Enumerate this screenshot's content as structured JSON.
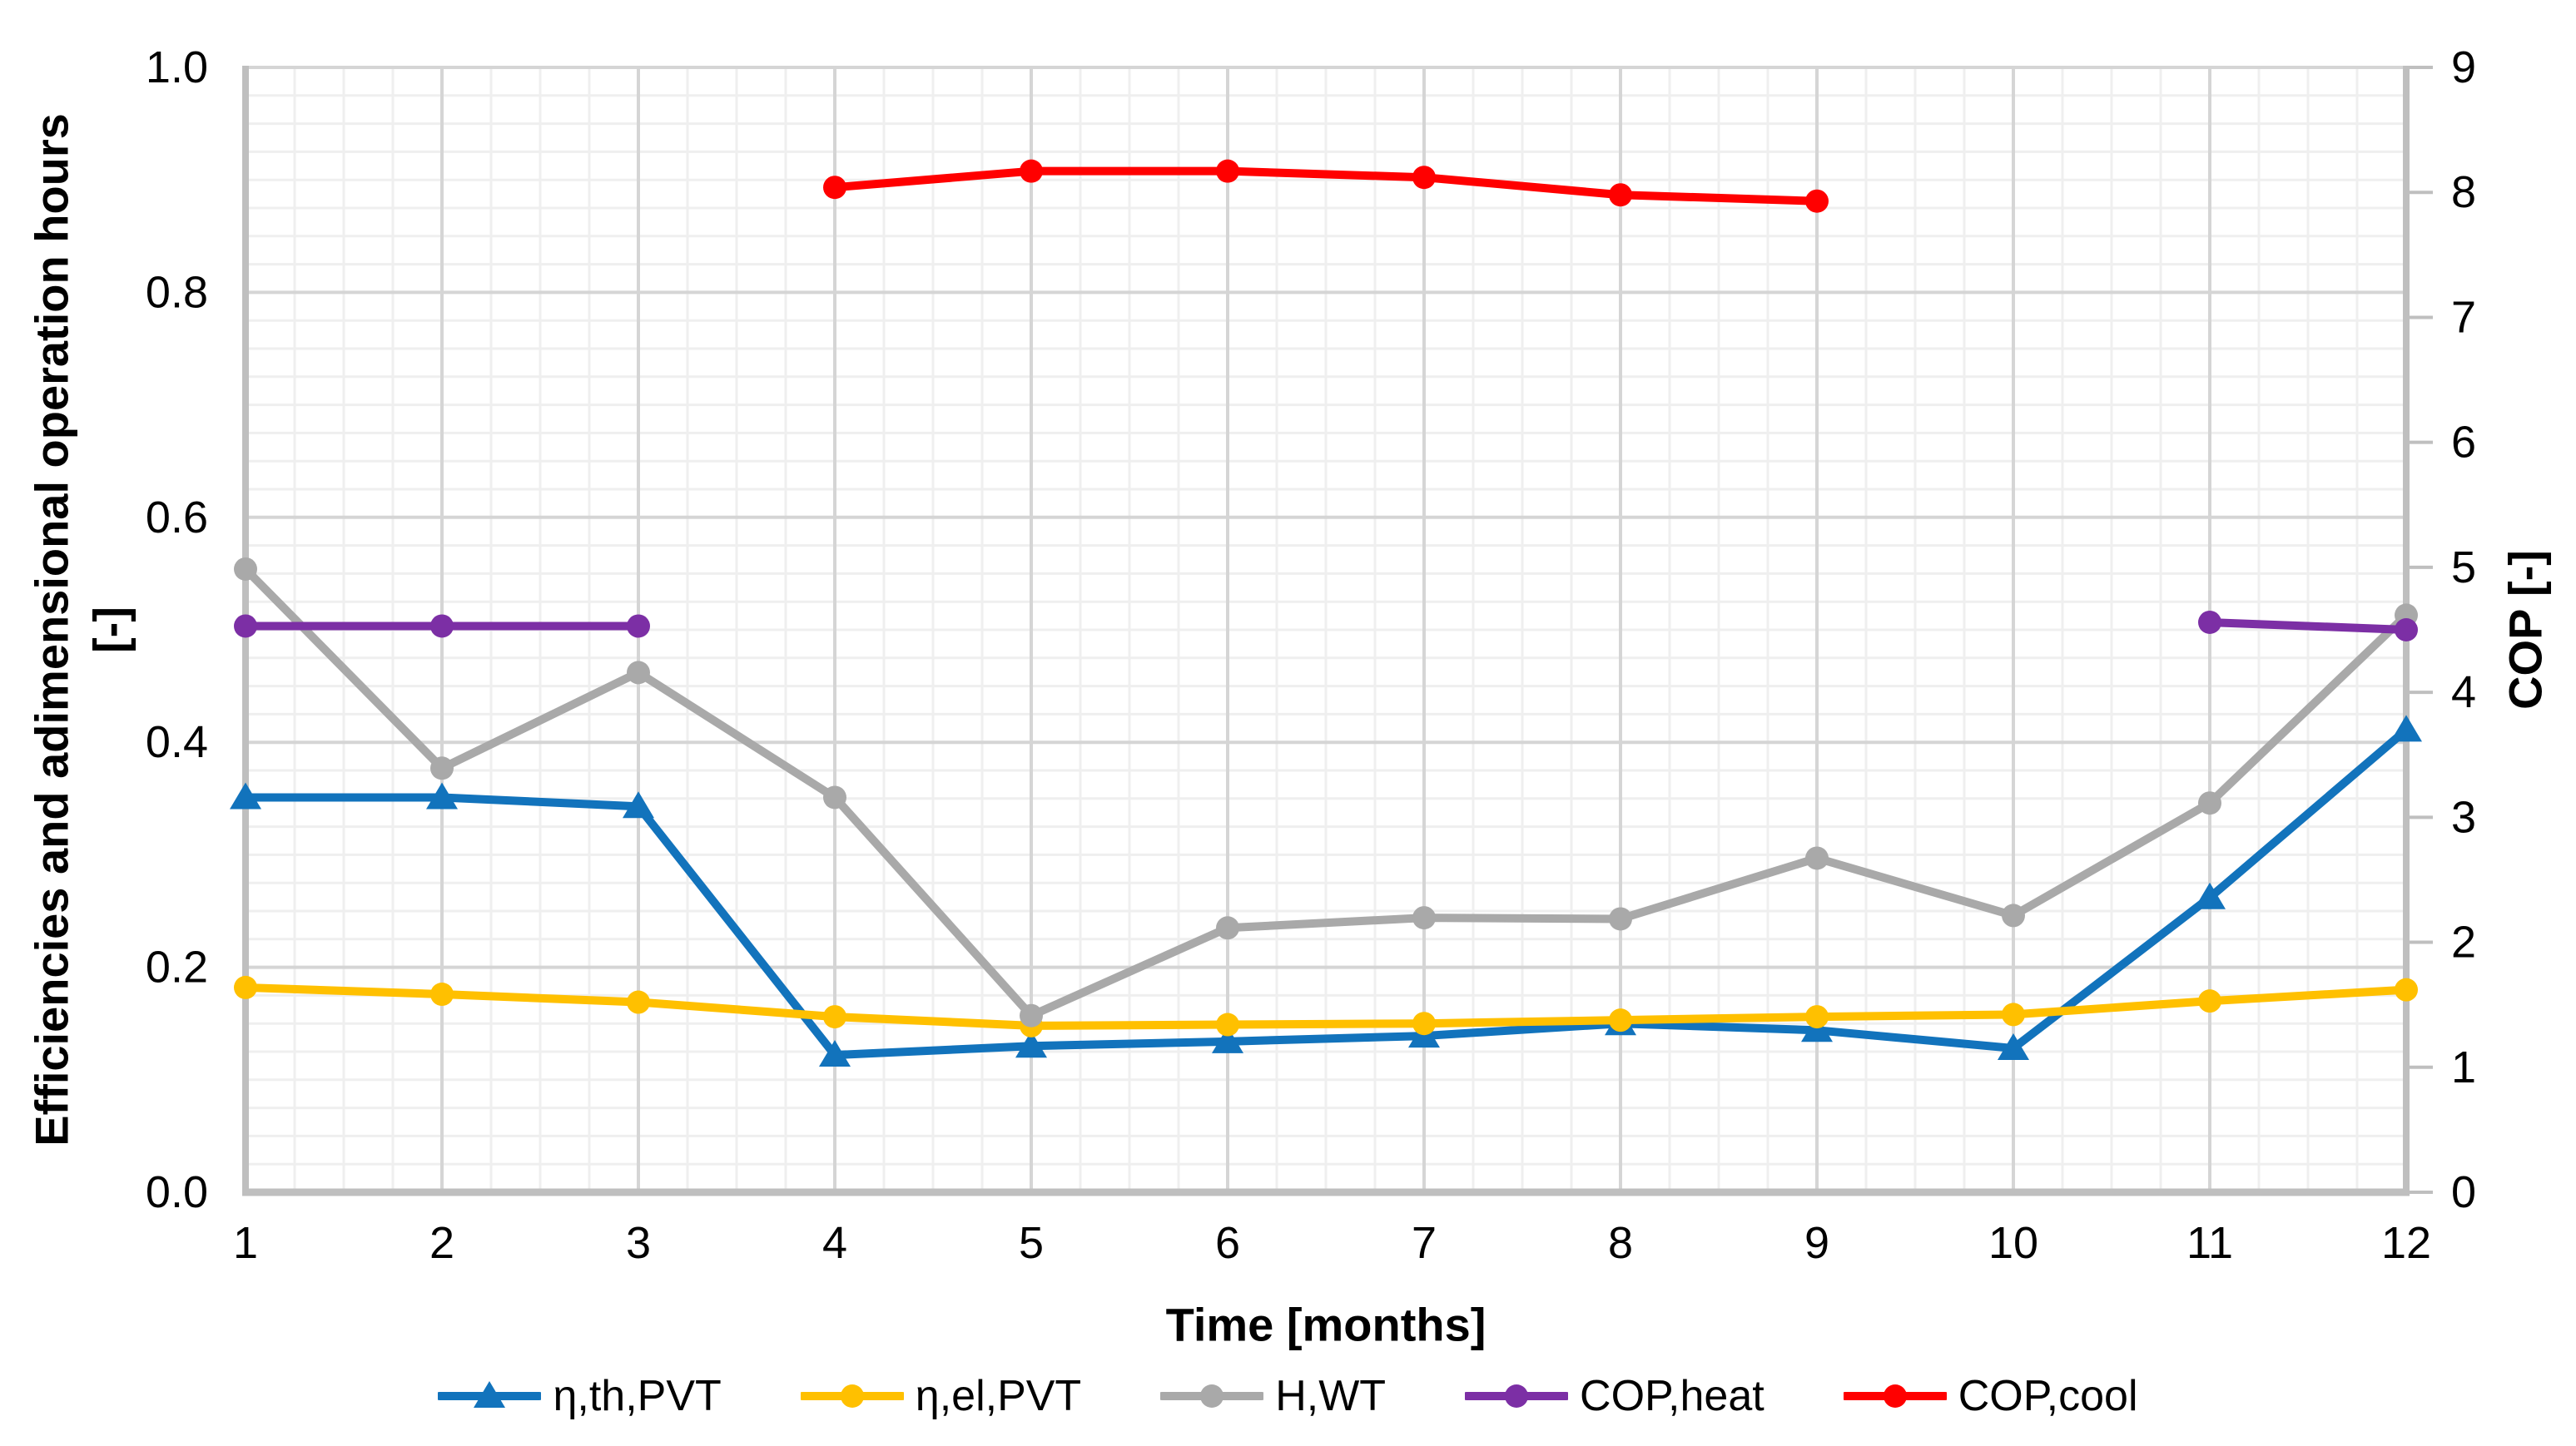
{
  "figure": {
    "background": "#FFFFFF"
  },
  "axes": {
    "left": {
      "title_line1": "Efficiencies and adimensional operation hours",
      "title_line2": "[-]",
      "tick_labels": [
        "1.0",
        "0.8",
        "0.6",
        "0.4",
        "0.2",
        "0.0"
      ]
    },
    "right": {
      "title": "COP [-]",
      "tick_labels": [
        "9",
        "8",
        "7",
        "6",
        "5",
        "4",
        "3",
        "2",
        "1",
        "0"
      ]
    },
    "x": {
      "title": "Time [months]",
      "tick_labels": [
        "1",
        "2",
        "3",
        "4",
        "5",
        "6",
        "7",
        "8",
        "9",
        "10",
        "11",
        "12"
      ]
    }
  },
  "chart_data": {
    "type": "line",
    "title": "",
    "xlabel": "Time [months]",
    "ylabel_left": "Efficiencies and adimensional operation hours [-]",
    "ylabel_right": "COP [-]",
    "x": [
      1,
      2,
      3,
      4,
      5,
      6,
      7,
      8,
      9,
      10,
      11,
      12
    ],
    "left_axis": {
      "min": 0,
      "max": 1.0,
      "major_step": 0.2,
      "minor_step": 0.025
    },
    "right_axis": {
      "min": 0,
      "max": 9,
      "major_step": 1
    },
    "x_axis": {
      "minor_divisions_per_month": 4
    },
    "grid": {
      "major": true,
      "minor": true
    },
    "legend_position": "bottom",
    "series": [
      {
        "name": "η,th,PVT",
        "axis": "left",
        "marker": "triangle",
        "color": "#1273BC",
        "values": [
          0.351,
          0.351,
          0.343,
          0.122,
          0.13,
          0.134,
          0.139,
          0.15,
          0.144,
          0.128,
          0.262,
          0.411
        ]
      },
      {
        "name": "η,el,PVT",
        "axis": "left",
        "marker": "circle",
        "color": "#FFC000",
        "values": [
          0.182,
          0.176,
          0.169,
          0.156,
          0.148,
          0.149,
          0.15,
          0.153,
          0.156,
          0.158,
          0.17,
          0.18
        ]
      },
      {
        "name": "H,WT",
        "axis": "left",
        "marker": "circle",
        "color": "#A9A9A9",
        "values": [
          0.554,
          0.377,
          0.462,
          0.351,
          0.157,
          0.235,
          0.244,
          0.243,
          0.297,
          0.246,
          0.346,
          0.513
        ]
      },
      {
        "name": "COP,heat",
        "axis": "right",
        "marker": "circle",
        "color": "#7C2FA5",
        "values": [
          4.53,
          4.53,
          4.53,
          null,
          null,
          null,
          null,
          null,
          null,
          null,
          4.56,
          4.5
        ]
      },
      {
        "name": "COP,cool",
        "axis": "right",
        "marker": "circle",
        "color": "#FF0000",
        "values": [
          null,
          null,
          null,
          8.04,
          8.17,
          8.17,
          8.12,
          7.98,
          7.93,
          null,
          null,
          null
        ]
      }
    ],
    "colors": {
      "grid_minor": "#EFEFEF",
      "grid_major": "#D5D5D5",
      "axis_line": "#BFBFBF",
      "text": "#000000"
    }
  }
}
